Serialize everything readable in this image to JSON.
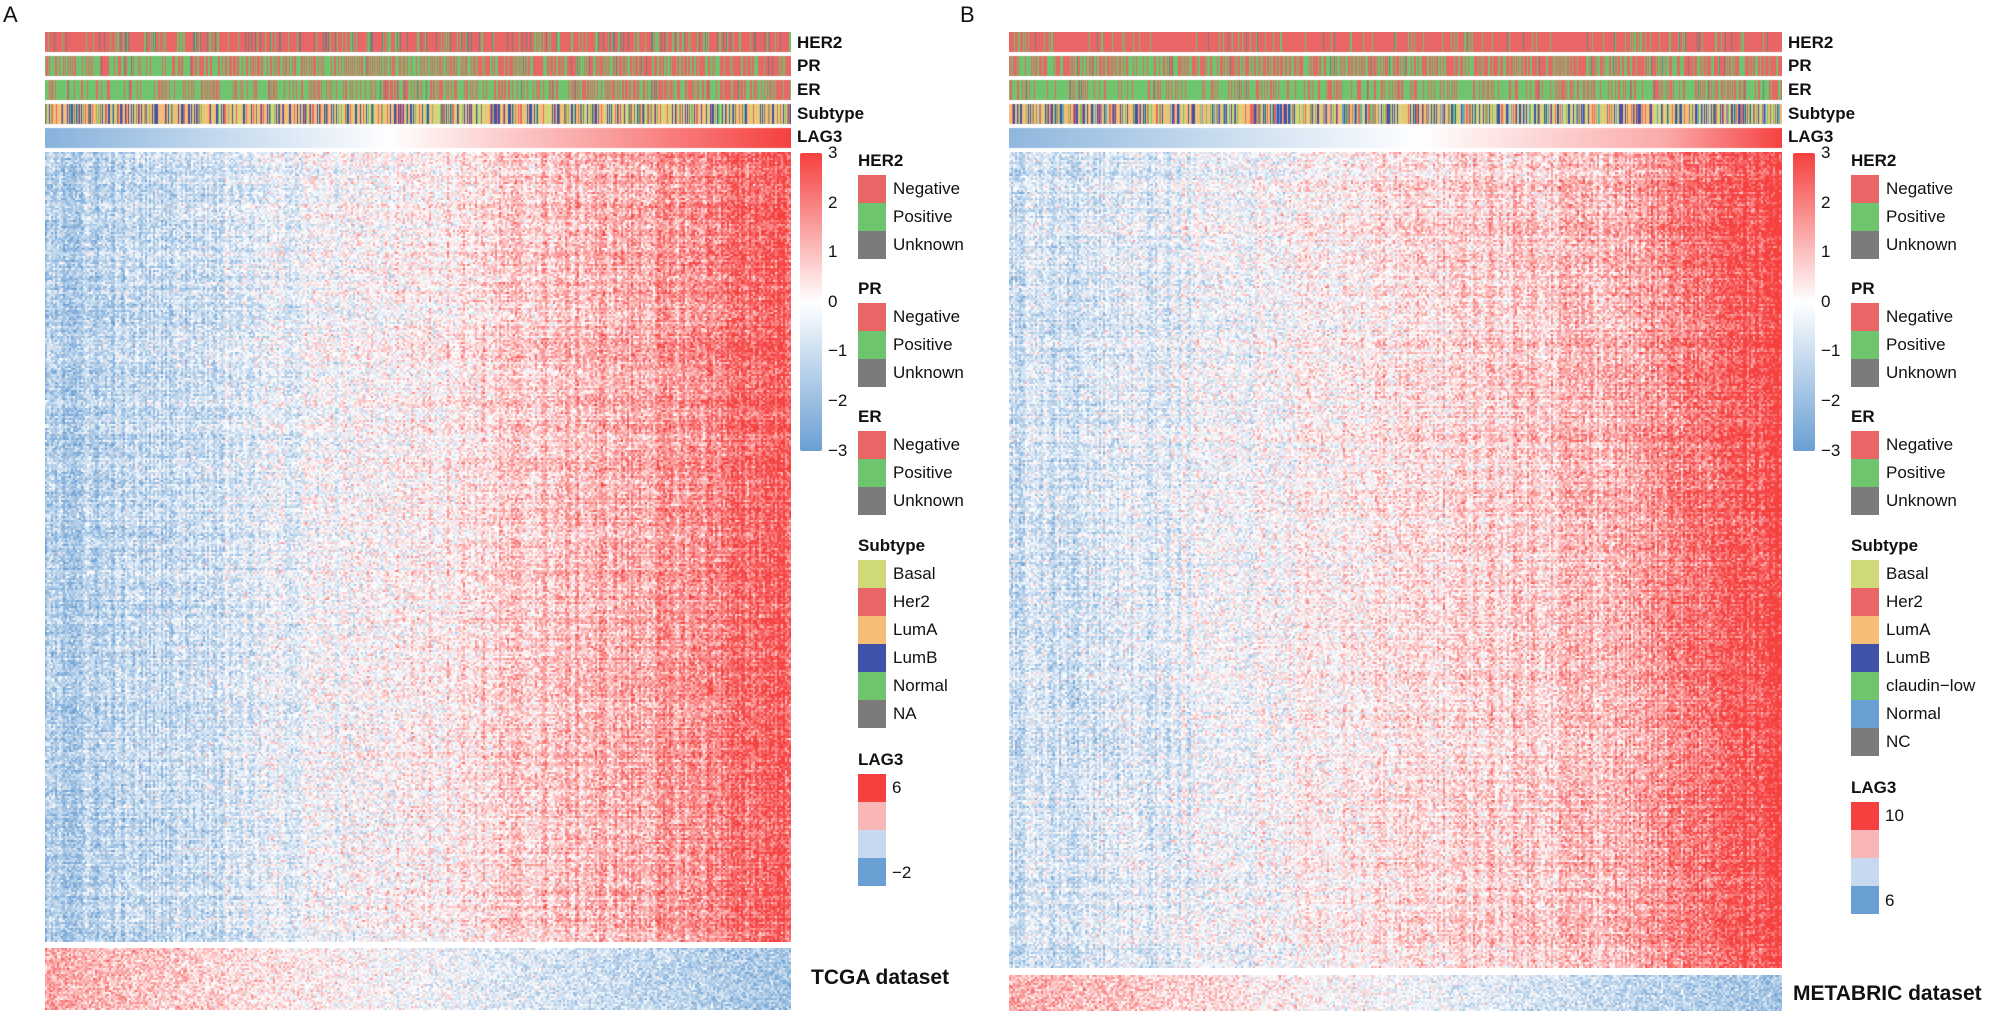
{
  "chart_data": [
    {
      "type": "heatmap",
      "panel": "A",
      "dataset_label": "TCGA dataset",
      "annotation_tracks": [
        "HER2",
        "PR",
        "ER",
        "Subtype",
        "LAG3"
      ],
      "colorbar": {
        "ticks": [
          "3",
          "2",
          "1",
          "0",
          "−1",
          "−2",
          "−3"
        ],
        "low_color": "#6a9fd3",
        "mid_color": "#ffffff",
        "high_color": "#f5403f"
      },
      "legends": [
        {
          "title": "HER2",
          "items": [
            {
              "label": "Negative",
              "color": "#e86766"
            },
            {
              "label": "Positive",
              "color": "#6fc46e"
            },
            {
              "label": "Unknown",
              "color": "#7b7b7b"
            }
          ]
        },
        {
          "title": "PR",
          "items": [
            {
              "label": "Negative",
              "color": "#e86766"
            },
            {
              "label": "Positive",
              "color": "#6fc46e"
            },
            {
              "label": "Unknown",
              "color": "#7b7b7b"
            }
          ]
        },
        {
          "title": "ER",
          "items": [
            {
              "label": "Negative",
              "color": "#e86766"
            },
            {
              "label": "Positive",
              "color": "#6fc46e"
            },
            {
              "label": "Unknown",
              "color": "#7b7b7b"
            }
          ]
        },
        {
          "title": "Subtype",
          "items": [
            {
              "label": "Basal",
              "color": "#cfd97a"
            },
            {
              "label": "Her2",
              "color": "#e86766"
            },
            {
              "label": "LumA",
              "color": "#f6bd76"
            },
            {
              "label": "LumB",
              "color": "#3f52a8"
            },
            {
              "label": "Normal",
              "color": "#6fc46e"
            },
            {
              "label": "NA",
              "color": "#7b7b7b"
            }
          ]
        }
      ],
      "lag3_legend": {
        "title": "LAG3",
        "colors": [
          "#f5403f",
          "#f9b6b6",
          "#c6d9ee",
          "#6a9fd3"
        ],
        "top_label": "6",
        "bottom_label": "−2"
      }
    },
    {
      "type": "heatmap",
      "panel": "B",
      "dataset_label": "METABRIC dataset",
      "annotation_tracks": [
        "HER2",
        "PR",
        "ER",
        "Subtype",
        "LAG3"
      ],
      "colorbar": {
        "ticks": [
          "3",
          "2",
          "1",
          "0",
          "−1",
          "−2",
          "−3"
        ],
        "low_color": "#6a9fd3",
        "mid_color": "#ffffff",
        "high_color": "#f5403f"
      },
      "legends": [
        {
          "title": "HER2",
          "items": [
            {
              "label": "Negative",
              "color": "#e86766"
            },
            {
              "label": "Positive",
              "color": "#6fc46e"
            },
            {
              "label": "Unknown",
              "color": "#7b7b7b"
            }
          ]
        },
        {
          "title": "PR",
          "items": [
            {
              "label": "Negative",
              "color": "#e86766"
            },
            {
              "label": "Positive",
              "color": "#6fc46e"
            },
            {
              "label": "Unknown",
              "color": "#7b7b7b"
            }
          ]
        },
        {
          "title": "ER",
          "items": [
            {
              "label": "Negative",
              "color": "#e86766"
            },
            {
              "label": "Positive",
              "color": "#6fc46e"
            },
            {
              "label": "Unknown",
              "color": "#7b7b7b"
            }
          ]
        },
        {
          "title": "Subtype",
          "items": [
            {
              "label": "Basal",
              "color": "#cfd97a"
            },
            {
              "label": "Her2",
              "color": "#e86766"
            },
            {
              "label": "LumA",
              "color": "#f6bd76"
            },
            {
              "label": "LumB",
              "color": "#3f52a8"
            },
            {
              "label": "claudin−low",
              "color": "#6fc46e"
            },
            {
              "label": "Normal",
              "color": "#6a9fd3"
            },
            {
              "label": "NC",
              "color": "#7b7b7b"
            }
          ]
        }
      ],
      "lag3_legend": {
        "title": "LAG3",
        "colors": [
          "#f5403f",
          "#f9b6b6",
          "#c6d9ee",
          "#6a9fd3"
        ],
        "top_label": "10",
        "bottom_label": "6"
      }
    }
  ]
}
